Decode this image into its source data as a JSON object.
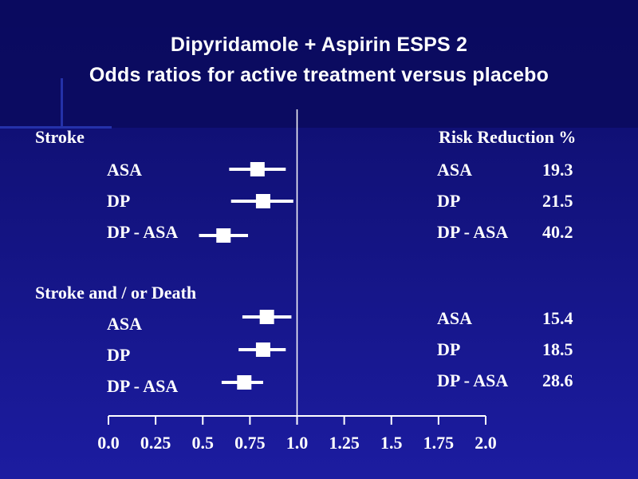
{
  "chart_data": {
    "type": "forest",
    "title": "Dipyridamole + Aspirin ESPS 2",
    "subtitle": "Odds ratios for active treatment versus placebo",
    "x_ticks": [
      "0.0",
      "0.25",
      "0.5",
      "0.75",
      "1.0",
      "1.25",
      "1.5",
      "1.75",
      "2.0"
    ],
    "xlim": [
      0,
      2
    ],
    "reference_line": 1.0,
    "right_header": "Risk Reduction %",
    "groups": [
      {
        "label": "Stroke",
        "rows": [
          {
            "name": "ASA",
            "or": 0.79,
            "ci": [
              0.64,
              0.94
            ],
            "rr_label": "ASA",
            "rr": "19.3"
          },
          {
            "name": "DP",
            "or": 0.82,
            "ci": [
              0.65,
              0.98
            ],
            "rr_label": "DP",
            "rr": "21.5"
          },
          {
            "name": "DP - ASA",
            "or": 0.61,
            "ci": [
              0.48,
              0.74
            ],
            "rr_label": "DP - ASA",
            "rr": "40.2"
          }
        ]
      },
      {
        "label": "Stroke and / or Death",
        "rows": [
          {
            "name": "ASA",
            "or": 0.84,
            "ci": [
              0.71,
              0.97
            ],
            "rr_label": "ASA",
            "rr": "15.4"
          },
          {
            "name": "DP",
            "or": 0.82,
            "ci": [
              0.69,
              0.94
            ],
            "rr_label": "DP",
            "rr": "18.5"
          },
          {
            "name": "DP - ASA",
            "or": 0.72,
            "ci": [
              0.6,
              0.82
            ],
            "rr_label": "DP - ASA",
            "rr": "28.6"
          }
        ]
      }
    ]
  }
}
